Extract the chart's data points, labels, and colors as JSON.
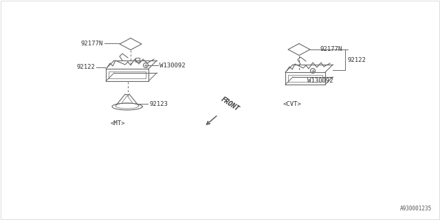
{
  "bg_color": "#ffffff",
  "line_color": "#666666",
  "text_color": "#333333",
  "diagram_id": "A930001235",
  "mt_label": "<MT>",
  "cvt_label": "<CVT>",
  "front_label": "FRONT",
  "fs": 6.5,
  "parts": {
    "part_92177N": "92177N",
    "part_92122": "92122",
    "part_92123": "92123",
    "part_W130092": "W130092",
    "part_92177N_cvt": "92177N",
    "part_92122_cvt": "92122",
    "part_W130092_cvt": "W130092"
  }
}
